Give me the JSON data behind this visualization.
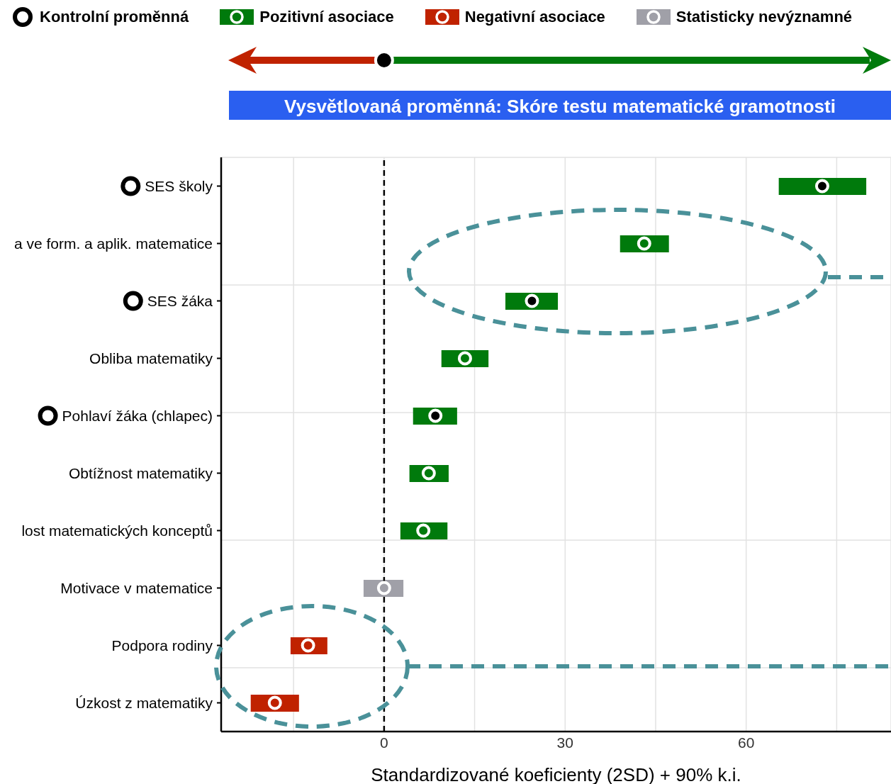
{
  "chart_data": {
    "type": "bar",
    "orientation": "horizontal",
    "title": "Vysvětlovaná proměnná: Skóre testu matematické gramotnosti",
    "xlabel": "Standardizované koeficienty (2SD) + 90% k.i.",
    "categories": [
      "SES školy",
      "a ve form. a aplik. matematice",
      "SES žáka",
      "Obliba matematiky",
      "Pohlaví žáka (chlapec)",
      "Obtížnost matematiky",
      "lost matematických konceptů",
      "Motivace v matematice",
      "Podpora rodiny",
      "Úzkost z matematiky"
    ],
    "series": [
      {
        "name": "Pozitivní asociace",
        "color": "#007a0c",
        "base": [
          65.4,
          39.1,
          20.1,
          9.5,
          4.8,
          4.2,
          2.7,
          null,
          null,
          null
        ],
        "values": [
          14.5,
          8.1,
          8.7,
          7.8,
          7.3,
          6.5,
          7.8,
          null,
          null,
          null
        ]
      },
      {
        "name": "Negativní asociace",
        "color": "#c02200",
        "base": [
          null,
          null,
          null,
          null,
          null,
          null,
          null,
          null,
          -15.5,
          -22.1
        ],
        "values": [
          null,
          null,
          null,
          null,
          null,
          null,
          null,
          null,
          6.1,
          8.0
        ]
      },
      {
        "name": "Statisticky nevýznamné",
        "color": "#a0a0a8",
        "base": [
          null,
          null,
          null,
          null,
          null,
          null,
          null,
          -3.4,
          null,
          null
        ],
        "values": [
          null,
          null,
          null,
          null,
          null,
          null,
          null,
          6.6,
          null,
          null
        ]
      },
      {
        "name": "Kontrolní proměnná",
        "type": "scatter",
        "color": "#000000",
        "values": [
          72.6,
          null,
          24.5,
          null,
          8.5,
          null,
          null,
          null,
          null,
          null
        ]
      },
      {
        "type": "scatter",
        "color": "#ffffff",
        "values": [
          null,
          43.1,
          null,
          13.4,
          null,
          7.4,
          6.5,
          0,
          -12.6,
          -18.1
        ]
      }
    ],
    "xlim": [
      -27,
      84
    ],
    "xticks": [
      {
        "value": -15,
        "label": null
      },
      0,
      {
        "value": 15,
        "label": null
      },
      30,
      {
        "value": 45,
        "label": null
      },
      60,
      {
        "value": 75,
        "label": null
      }
    ],
    "grid": true,
    "legend": "top",
    "marker": "circle",
    "ref_lines": [
      {
        "axis": "x",
        "value": 0,
        "line_style": "dashed",
        "color": "#000000"
      }
    ]
  }
}
